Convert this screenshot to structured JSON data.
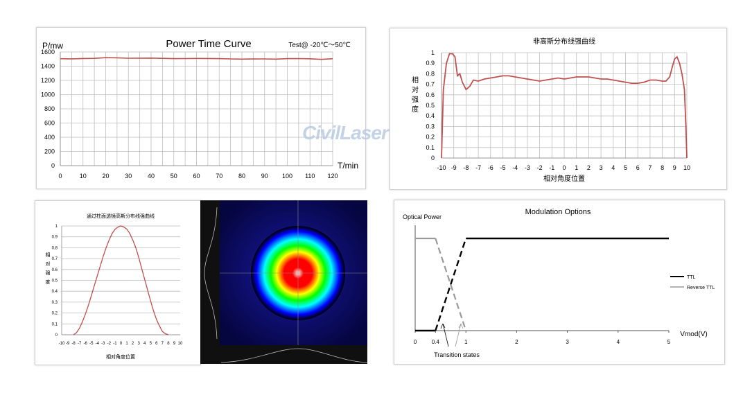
{
  "watermark": "CivilLaser",
  "chart_data": [
    {
      "id": "power_time",
      "type": "line",
      "title": "Power Time Curve",
      "annotation": "Test@ -20℃～50℃",
      "xlabel": "T/min",
      "ylabel": "P/mw",
      "xlim": [
        0,
        120
      ],
      "ylim": [
        0,
        1600
      ],
      "xticks": [
        0,
        10,
        20,
        30,
        40,
        50,
        60,
        70,
        80,
        90,
        100,
        110,
        120
      ],
      "yticks": [
        0,
        200,
        400,
        600,
        800,
        1000,
        1200,
        1400,
        1600
      ],
      "grid": true,
      "color": "#c0504d",
      "x": [
        0,
        5,
        10,
        15,
        20,
        25,
        30,
        35,
        40,
        45,
        50,
        55,
        60,
        65,
        70,
        75,
        80,
        85,
        90,
        95,
        100,
        105,
        110,
        115,
        120
      ],
      "y": [
        1505,
        1503,
        1508,
        1510,
        1520,
        1518,
        1512,
        1513,
        1514,
        1510,
        1506,
        1507,
        1509,
        1508,
        1506,
        1502,
        1500,
        1501,
        1502,
        1500,
        1506,
        1507,
        1504,
        1496,
        1505
      ]
    },
    {
      "id": "non_gauss",
      "type": "line",
      "title": "非高斯分布线强曲线",
      "xlabel": "相对角度位置",
      "ylabel": "相对强度",
      "xlim": [
        -10,
        10
      ],
      "ylim": [
        0,
        1
      ],
      "xticks": [
        -10,
        -9,
        -8,
        -7,
        -6,
        -5,
        -4,
        -3,
        -2,
        -1,
        0,
        1,
        2,
        3,
        4,
        5,
        6,
        7,
        8,
        9,
        10
      ],
      "yticks": [
        0,
        0.1,
        0.2,
        0.3,
        0.4,
        0.5,
        0.6,
        0.7,
        0.8,
        0.9,
        1
      ],
      "ytick_labels": [
        "0",
        "0.1",
        "0.2",
        "0.3",
        "0.4",
        "0.5",
        "0.6",
        "0.7",
        "0.8",
        "0.9",
        "1"
      ],
      "grid": true,
      "color": "#c0504d",
      "x": [
        -10,
        -9.85,
        -9.6,
        -9.35,
        -9.1,
        -8.9,
        -8.7,
        -8.5,
        -8.3,
        -8.0,
        -7.7,
        -7.4,
        -7.0,
        -6.5,
        -6.0,
        -5.5,
        -5.0,
        -4.5,
        -4.0,
        -3.5,
        -3.0,
        -2.5,
        -2.0,
        -1.5,
        -1.0,
        -0.5,
        0,
        0.5,
        1.0,
        1.5,
        2.0,
        2.5,
        3.0,
        3.5,
        4.0,
        4.5,
        5.0,
        5.5,
        6.0,
        6.5,
        7.0,
        7.5,
        8.0,
        8.3,
        8.6,
        8.8,
        9.0,
        9.2,
        9.4,
        9.6,
        9.8,
        9.92,
        10
      ],
      "y": [
        0,
        0.65,
        0.9,
        0.99,
        0.99,
        0.96,
        0.78,
        0.8,
        0.72,
        0.65,
        0.68,
        0.74,
        0.73,
        0.75,
        0.76,
        0.77,
        0.78,
        0.78,
        0.77,
        0.76,
        0.75,
        0.74,
        0.73,
        0.74,
        0.75,
        0.76,
        0.75,
        0.76,
        0.77,
        0.77,
        0.77,
        0.76,
        0.75,
        0.75,
        0.74,
        0.73,
        0.72,
        0.71,
        0.71,
        0.72,
        0.74,
        0.74,
        0.73,
        0.73,
        0.77,
        0.86,
        0.94,
        0.96,
        0.9,
        0.8,
        0.65,
        0.3,
        0
      ]
    },
    {
      "id": "gauss",
      "type": "line",
      "title": "通过柱面透镜高斯分布线强曲线",
      "xlabel": "相对角度位置",
      "ylabel": "相对强度",
      "xlim": [
        -10,
        10
      ],
      "ylim": [
        0,
        1
      ],
      "xticks": [
        -10,
        -9,
        -8,
        -7,
        -6,
        -5,
        -4,
        -3,
        -2,
        -1,
        0,
        1,
        2,
        3,
        4,
        5,
        6,
        7,
        8,
        9,
        10
      ],
      "yticks": [
        0,
        0.1,
        0.2,
        0.3,
        0.4,
        0.5,
        0.6,
        0.7,
        0.8,
        0.9,
        1
      ],
      "ytick_labels": [
        "0",
        "0.1",
        "0.2",
        "0.3",
        "0.4",
        "0.5",
        "0.6",
        "0.7",
        "0.8",
        "0.9",
        "1"
      ],
      "grid": true,
      "color": "#c0504d",
      "x": [
        -8,
        -7.5,
        -7,
        -6.5,
        -6,
        -5.5,
        -5,
        -4.5,
        -4,
        -3.5,
        -3,
        -2.5,
        -2,
        -1.5,
        -1,
        -0.5,
        0,
        0.5,
        1,
        1.5,
        2,
        2.5,
        3,
        3.5,
        4,
        4.5,
        5,
        5.5,
        6,
        6.5,
        7,
        7.5,
        8
      ],
      "y": [
        0,
        0.02,
        0.06,
        0.12,
        0.19,
        0.27,
        0.36,
        0.45,
        0.54,
        0.63,
        0.72,
        0.8,
        0.87,
        0.93,
        0.97,
        0.99,
        1,
        0.99,
        0.97,
        0.93,
        0.87,
        0.8,
        0.71,
        0.61,
        0.51,
        0.41,
        0.31,
        0.22,
        0.14,
        0.08,
        0.03,
        0.01,
        0
      ]
    },
    {
      "id": "beam_profile",
      "type": "heatmap",
      "colormap": [
        "#000000",
        "#0000ff",
        "#00ffff",
        "#00ff00",
        "#ffff00",
        "#ff0000",
        "#ffffff"
      ]
    },
    {
      "id": "modulation",
      "type": "line",
      "title": "Modulation Options",
      "ylabel": "Optical Power",
      "xlabel": "Vmod(V)",
      "xticks": [
        0,
        0.4,
        1,
        2,
        3,
        4,
        5
      ],
      "xlim": [
        0,
        5
      ],
      "ylim": [
        0,
        1
      ],
      "annotation": "Transition states",
      "legend_position": "right",
      "series": [
        {
          "name": "TTL",
          "color": "#000000",
          "x": [
            0,
            0.4,
            1,
            5
          ],
          "y": [
            0,
            0,
            1,
            1
          ]
        },
        {
          "name": "Reverse TTL",
          "color": "#999999",
          "x": [
            0,
            0.4,
            1
          ],
          "y": [
            1,
            1,
            0
          ]
        }
      ]
    }
  ]
}
